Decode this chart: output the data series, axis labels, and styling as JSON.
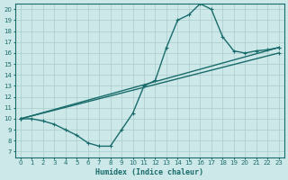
{
  "title": "",
  "xlabel": "Humidex (Indice chaleur)",
  "xlim": [
    -0.5,
    23.5
  ],
  "ylim": [
    6.5,
    20.5
  ],
  "xticks": [
    0,
    1,
    2,
    3,
    4,
    5,
    6,
    7,
    8,
    9,
    10,
    11,
    12,
    13,
    14,
    15,
    16,
    17,
    18,
    19,
    20,
    21,
    22,
    23
  ],
  "yticks": [
    7,
    8,
    9,
    10,
    11,
    12,
    13,
    14,
    15,
    16,
    17,
    18,
    19,
    20
  ],
  "bg_color": "#cce8e8",
  "grid_color": "#aacccc",
  "line_color": "#1a6b6b",
  "curve_x": [
    0,
    1,
    2,
    3,
    4,
    5,
    6,
    7,
    8,
    9,
    10,
    11,
    12,
    13,
    14,
    15,
    16,
    17,
    18,
    19,
    20,
    21,
    22,
    23
  ],
  "curve_y": [
    10,
    10,
    9.8,
    9.5,
    9.0,
    8.5,
    7.8,
    7.5,
    7.5,
    9.0,
    10.5,
    13.0,
    13.5,
    16.5,
    19.0,
    19.5,
    20.5,
    20.0,
    17.5,
    16.2,
    16.0,
    16.2,
    16.3,
    16.5
  ],
  "line2_x": [
    0,
    23
  ],
  "line2_y": [
    10.0,
    16.5
  ],
  "line3_x": [
    0,
    23
  ],
  "line3_y": [
    10.0,
    16.0
  ],
  "marker": "+",
  "markersize": 3,
  "linewidth": 1.0
}
